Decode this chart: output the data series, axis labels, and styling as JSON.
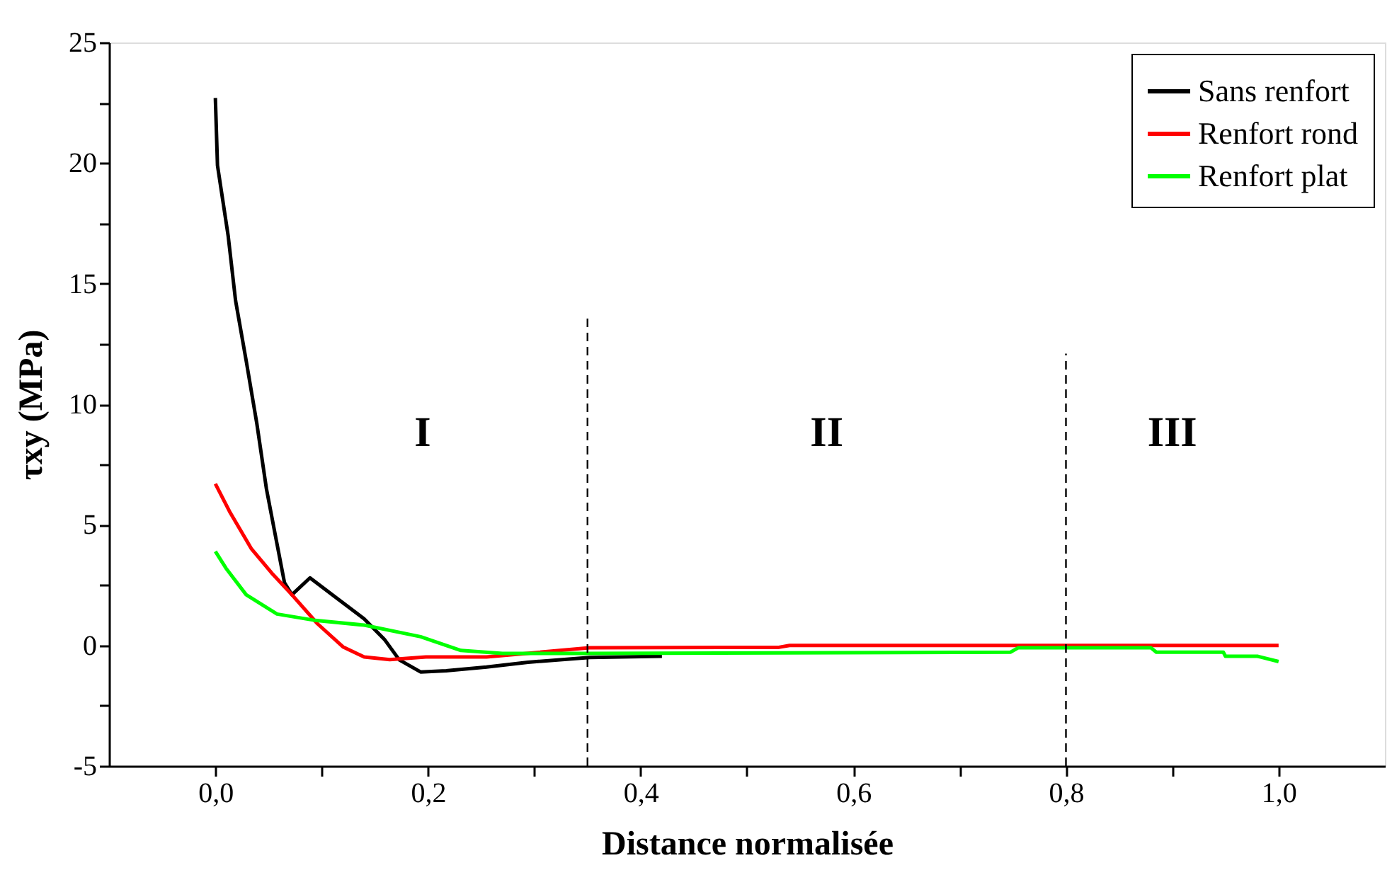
{
  "chart_data": {
    "type": "line",
    "xlabel": "Distance normalisée",
    "ylabel": "τxy (MPa)",
    "xlim": [
      -0.1,
      1.1
    ],
    "ylim": [
      -5,
      25
    ],
    "xticks": [
      {
        "value": 0,
        "label": "0,0"
      },
      {
        "value": 0.1,
        "label": null
      },
      {
        "value": 0.2,
        "label": "0,2"
      },
      {
        "value": 0.3,
        "label": null
      },
      {
        "value": 0.4,
        "label": "0,4"
      },
      {
        "value": 0.5,
        "label": null
      },
      {
        "value": 0.6,
        "label": "0,6"
      },
      {
        "value": 0.7,
        "label": null
      },
      {
        "value": 0.8,
        "label": "0,8"
      },
      {
        "value": 0.9,
        "label": null
      },
      {
        "value": 1.0,
        "label": "1,0"
      }
    ],
    "yticks": [
      -5,
      {
        "value": -2.5,
        "label": null
      },
      0,
      {
        "value": 2.5,
        "label": null
      },
      5,
      {
        "value": 7.5,
        "label": null
      },
      10,
      {
        "value": 12.5,
        "label": null
      },
      15,
      {
        "value": 17.5,
        "label": null
      },
      20,
      {
        "value": 22.5,
        "label": null
      },
      25
    ],
    "grid": false,
    "legend": "top right",
    "line_style": "solid",
    "marker": "none",
    "series": [
      {
        "name": "Sans renfort",
        "color": "#000000",
        "x": [
          0,
          0.002,
          0.012,
          0.019,
          0.029,
          0.039,
          0.048,
          0.058,
          0.065,
          0.072,
          0.089,
          0.116,
          0.14,
          0.159,
          0.173,
          0.193,
          0.217,
          0.255,
          0.294,
          0.352,
          0.42
        ],
        "values": [
          22.7,
          19.9,
          17.0,
          14.3,
          11.8,
          9.2,
          6.5,
          4.2,
          2.6,
          2.1,
          2.8,
          1.9,
          1.1,
          0.25,
          -0.6,
          -1.1,
          -1.05,
          -0.9,
          -0.7,
          -0.5,
          -0.45
        ]
      },
      {
        "name": "Renfort rond",
        "color": "#ff0000",
        "x": [
          0,
          0.014,
          0.034,
          0.053,
          0.072,
          0.096,
          0.12,
          0.14,
          0.164,
          0.198,
          0.255,
          0.352,
          0.53,
          0.54,
          1.0
        ],
        "values": [
          6.7,
          5.5,
          4.0,
          3.0,
          2.1,
          0.9,
          -0.06,
          -0.48,
          -0.59,
          -0.48,
          -0.48,
          -0.1,
          -0.08,
          0.0,
          0.0
        ]
      },
      {
        "name": "Renfort plat",
        "color": "#00ff00",
        "x": [
          0,
          0.01,
          0.029,
          0.058,
          0.092,
          0.14,
          0.193,
          0.231,
          0.27,
          0.352,
          0.748,
          0.755,
          0.88,
          0.885,
          0.948,
          0.95,
          0.98,
          1.0
        ],
        "values": [
          3.9,
          3.2,
          2.1,
          1.3,
          1.05,
          0.84,
          0.36,
          -0.21,
          -0.33,
          -0.33,
          -0.28,
          -0.1,
          -0.1,
          -0.28,
          -0.28,
          -0.45,
          -0.45,
          -0.67
        ]
      }
    ],
    "ref_lines": [
      {
        "axis": "x",
        "value": 0.35,
        "label": null,
        "color": "#000000",
        "line_style": "dashed"
      },
      {
        "axis": "x",
        "value": 0.8,
        "label": null,
        "color": "#000000",
        "line_style": "dashed"
      }
    ],
    "annotations": [
      "I",
      "II",
      "III"
    ]
  }
}
